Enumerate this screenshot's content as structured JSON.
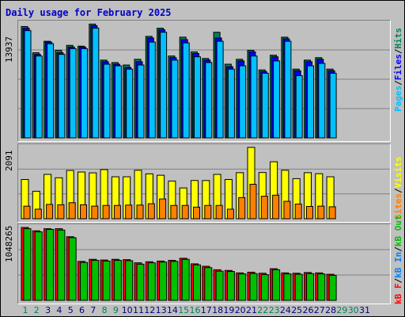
{
  "title": "Daily usage for February 2025",
  "colors": {
    "hits": "#00805c",
    "files": "#0000ff",
    "pages": "#00c0ff",
    "visits": "#ffff00",
    "sites": "#ff8000",
    "kbf": "#ff0000",
    "kbin": "#0080ff",
    "kbout": "#00c000",
    "weekend_day": "#00805c",
    "day": "#000080"
  },
  "legends": {
    "hits_panel": {
      "pages": "Pages",
      "files": "Files",
      "hits": "Hits",
      "sep": "/"
    },
    "visits_panel": {
      "sites": "Sites",
      "visits": "Visits",
      "sep": "/"
    },
    "kb_panel": {
      "kbf": "kB F",
      "kbin": "kB In",
      "kbout": "kB Out",
      "sep": "/"
    }
  },
  "chart_data": [
    {
      "type": "bar",
      "name": "hits-files-pages",
      "ymax_label": "13937",
      "ylim": [
        0,
        13937
      ],
      "categories": [
        "1",
        "2",
        "3",
        "4",
        "5",
        "6",
        "7",
        "8",
        "9",
        "10",
        "11",
        "12",
        "13",
        "14",
        "15",
        "16",
        "17",
        "18",
        "19",
        "20",
        "21",
        "22",
        "23",
        "24",
        "25",
        "26",
        "27",
        "28",
        "29",
        "30",
        "31"
      ],
      "series": [
        {
          "name": "Hits",
          "values": [
            13600,
            10400,
            11800,
            10700,
            11300,
            11200,
            13900,
            9500,
            9200,
            8900,
            9600,
            12400,
            13400,
            10000,
            12300,
            10500,
            9700,
            12900,
            9000,
            9600,
            10700,
            8300,
            10100,
            12300,
            8400,
            9500,
            9800,
            8400,
            null,
            null,
            null
          ]
        },
        {
          "name": "Files",
          "values": [
            13400,
            10200,
            11700,
            10400,
            11100,
            11100,
            13700,
            9300,
            9000,
            8600,
            9300,
            12200,
            13200,
            9800,
            12000,
            10300,
            9500,
            12200,
            8700,
            9400,
            10500,
            8100,
            9900,
            12100,
            8200,
            9300,
            9600,
            8200,
            null,
            null,
            null
          ]
        },
        {
          "name": "Pages",
          "values": [
            13100,
            10000,
            11500,
            10200,
            10900,
            10900,
            13400,
            9000,
            8800,
            8400,
            8900,
            11700,
            12900,
            9500,
            11600,
            9900,
            9200,
            11800,
            8400,
            8800,
            10000,
            7900,
            9400,
            11800,
            7600,
            8800,
            9100,
            7900,
            null,
            null,
            null
          ]
        }
      ]
    },
    {
      "type": "bar",
      "name": "visits-sites",
      "ymax_label": "2091",
      "ylim": [
        0,
        2091
      ],
      "categories": [
        "1",
        "2",
        "3",
        "4",
        "5",
        "6",
        "7",
        "8",
        "9",
        "10",
        "11",
        "12",
        "13",
        "14",
        "15",
        "16",
        "17",
        "18",
        "19",
        "20",
        "21",
        "22",
        "23",
        "24",
        "25",
        "26",
        "27",
        "28",
        "29",
        "30",
        "31"
      ],
      "series": [
        {
          "name": "Visits",
          "values": [
            1150,
            805,
            1300,
            1200,
            1415,
            1370,
            1345,
            1440,
            1230,
            1230,
            1420,
            1315,
            1275,
            1105,
            902,
            1120,
            1120,
            1300,
            1150,
            1350,
            2091,
            1355,
            1670,
            1420,
            1175,
            1350,
            1320,
            1230,
            null,
            null,
            null
          ]
        },
        {
          "name": "Sites",
          "values": [
            368,
            280,
            420,
            410,
            470,
            410,
            370,
            390,
            390,
            400,
            400,
            440,
            580,
            390,
            390,
            340,
            390,
            390,
            280,
            620,
            1010,
            660,
            690,
            510,
            430,
            360,
            370,
            350,
            null,
            null,
            null
          ]
        }
      ]
    },
    {
      "type": "bar",
      "name": "kb",
      "ymax_label": "1048265",
      "ylim": [
        0,
        1048265
      ],
      "categories": [
        "1",
        "2",
        "3",
        "4",
        "5",
        "6",
        "7",
        "8",
        "9",
        "10",
        "11",
        "12",
        "13",
        "14",
        "15",
        "16",
        "17",
        "18",
        "19",
        "20",
        "21",
        "22",
        "23",
        "24",
        "25",
        "26",
        "27",
        "28",
        "29",
        "30",
        "31"
      ],
      "series": [
        {
          "name": "kB F",
          "values": [
            1048265,
            1000000,
            1030000,
            1030000,
            915000,
            560000,
            590000,
            580000,
            590000,
            585000,
            540000,
            555000,
            565000,
            575000,
            605000,
            525000,
            490000,
            440000,
            430000,
            395000,
            405000,
            390000,
            455000,
            395000,
            390000,
            400000,
            395000,
            375000,
            null,
            null,
            null
          ]
        },
        {
          "name": "kB Out",
          "values": [
            1030000,
            985000,
            1020000,
            1010000,
            900000,
            545000,
            575000,
            565000,
            575000,
            570000,
            520000,
            540000,
            550000,
            560000,
            590000,
            510000,
            470000,
            420000,
            415000,
            380000,
            385000,
            370000,
            440000,
            380000,
            375000,
            385000,
            380000,
            360000,
            null,
            null,
            null
          ]
        }
      ]
    }
  ]
}
